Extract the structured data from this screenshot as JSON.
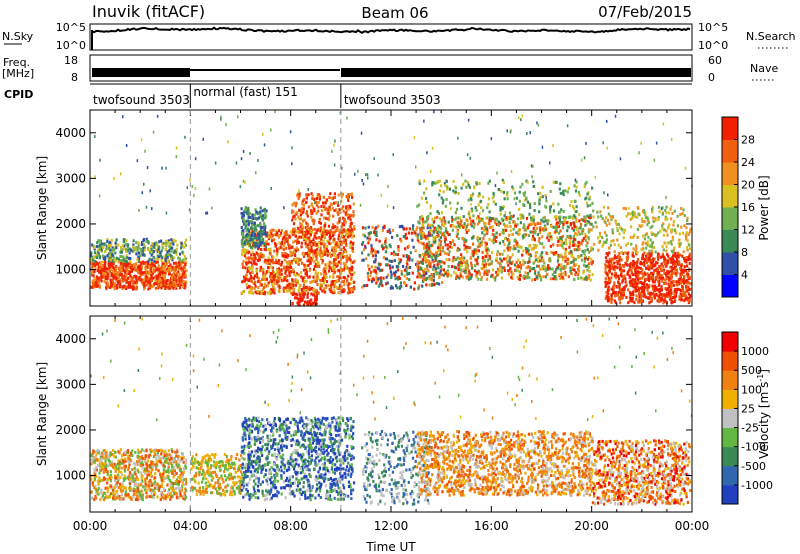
{
  "header": {
    "title": "Inuvik (fitACF)",
    "beam": "Beam 06",
    "date": "07/Feb/2015"
  },
  "top_panels": {
    "nsky_label": "N.Sky",
    "nsky_ticks": [
      "10^5",
      "10^0"
    ],
    "nsearch_label": "N.Search",
    "nsearch_ticks": [
      "10^5",
      "10^0"
    ],
    "freq_label": "Freq.",
    "freq_unit": "[MHz]",
    "freq_ticks": [
      "18",
      "8"
    ],
    "nave_label": "Nave",
    "nave_ticks": [
      "60",
      "0"
    ],
    "cpid_label": "CPID",
    "cpid_segments": [
      {
        "label": "twofsound 3503",
        "start_hour": 0,
        "end_hour": 4
      },
      {
        "label": "normal (fast) 151",
        "start_hour": 4,
        "end_hour": 10
      },
      {
        "label": "twofsound 3503",
        "start_hour": 10,
        "end_hour": 24
      }
    ]
  },
  "chart_data": [
    {
      "type": "heatmap",
      "panel": "power",
      "ylabel": "Slant Range [km]",
      "ylim": [
        200,
        4500
      ],
      "yticks": [
        "1000",
        "2000",
        "3000",
        "4000"
      ],
      "xlim_hours": [
        0,
        24
      ],
      "colorbar_label": "Power [dB]",
      "colorbar_ticks": [
        "4",
        "8",
        "12",
        "16",
        "20",
        "24",
        "28"
      ],
      "colorbar_colors": [
        "#0000ff",
        "#3050a8",
        "#3a8a58",
        "#6fb050",
        "#d8c020",
        "#f09020",
        "#f06010",
        "#f02000"
      ]
    },
    {
      "type": "heatmap",
      "panel": "velocity",
      "ylabel": "Slant Range [km]",
      "ylim": [
        200,
        4500
      ],
      "yticks": [
        "1000",
        "2000",
        "3000",
        "4000"
      ],
      "xlim_hours": [
        0,
        24
      ],
      "xticks": [
        "00:00",
        "04:00",
        "08:00",
        "12:00",
        "16:00",
        "20:00",
        "00:00"
      ],
      "xlabel": "Time UT",
      "colorbar_label": "Velocity [m s",
      "colorbar_label_sup": "-1",
      "colorbar_label_end": "]",
      "colorbar_ticks": [
        "1000",
        "500",
        "100",
        "25",
        "-25",
        "-100",
        "-500",
        "-1000"
      ],
      "colorbar_colors": [
        "#2040c0",
        "#3068b0",
        "#3a8a58",
        "#60b840",
        "#c0c0c0",
        "#f0b000",
        "#f08010",
        "#f05000",
        "#f00000"
      ]
    }
  ],
  "vertical_markers_hours": [
    4,
    10
  ]
}
